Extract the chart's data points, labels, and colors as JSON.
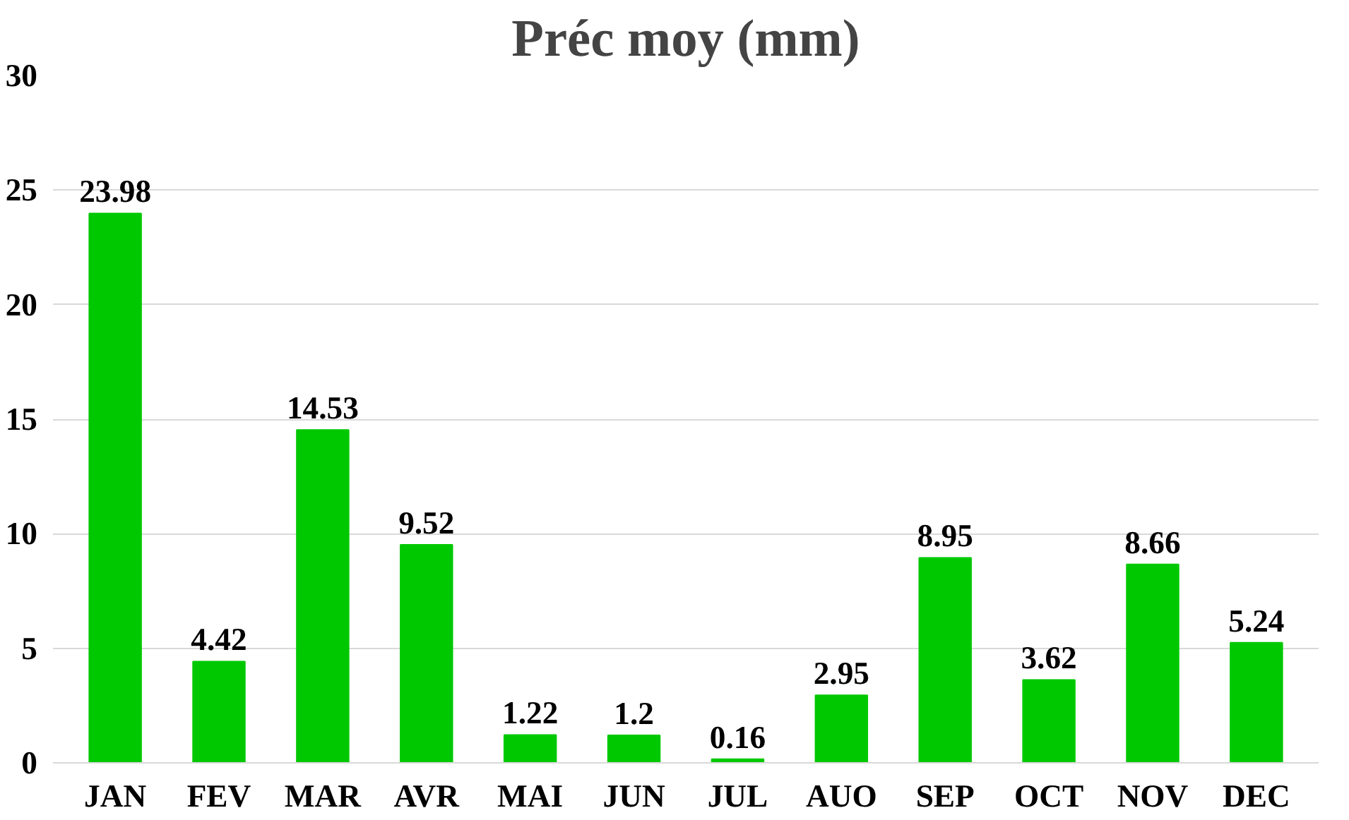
{
  "chart_data": {
    "type": "bar",
    "title": "Préc moy (mm)",
    "categories": [
      "JAN",
      "FEV",
      "MAR",
      "AVR",
      "MAI",
      "JUN",
      "JUL",
      "AUO",
      "SEP",
      "OCT",
      "NOV",
      "DEC"
    ],
    "values": [
      23.98,
      4.42,
      14.53,
      9.52,
      1.22,
      1.2,
      0.16,
      2.95,
      8.95,
      3.62,
      8.66,
      5.24
    ],
    "value_labels": [
      "23.98",
      "4.42",
      "14.53",
      "9.52",
      "1.22",
      "1.2",
      "0.16",
      "2.95",
      "8.95",
      "3.62",
      "8.66",
      "5.24"
    ],
    "color": "#00c800",
    "ylim": [
      0,
      30
    ],
    "yticks": [
      0,
      5,
      10,
      15,
      20,
      25,
      30
    ],
    "grid": "y"
  }
}
